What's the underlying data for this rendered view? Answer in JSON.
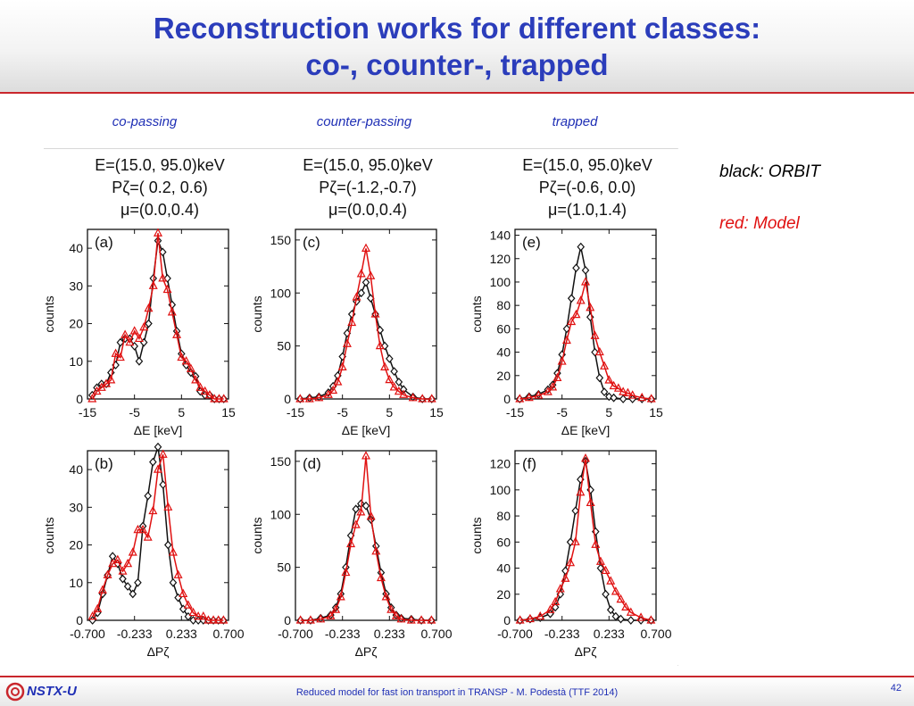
{
  "slide": {
    "title_line1": "Reconstruction works for different classes:",
    "title_line2": "co-, counter-, trapped",
    "columns": [
      "co-passing",
      "counter-passing",
      "trapped"
    ],
    "legend_black": "black: ORBIT",
    "legend_red": "red: Model",
    "footer_text": "Reduced model for fast ion transport in TRANSP - M. Podestà (TTF 2014)",
    "page_number": "42",
    "logo_text": "NSTX-U"
  },
  "colors": {
    "title": "#2b3dbb",
    "accent_red": "#c9262c",
    "orbit": "#111111",
    "model": "#e01010"
  },
  "chart_data": [
    {
      "type": "line",
      "panel": "(a)",
      "ylabel": "counts",
      "xlabel": "ΔE [keV]",
      "header": [
        "E=(15.0, 95.0)keV",
        "Pζ=( 0.2, 0.6)",
        "μ=(0.0,0.4)"
      ],
      "xlim": [
        -15,
        15
      ],
      "ylim": [
        0,
        45
      ],
      "xticks": [
        -15,
        -5,
        5,
        15
      ],
      "xticklabels": [
        "-15",
        "-5",
        "5",
        "15"
      ],
      "yticks": [
        0,
        10,
        20,
        30,
        40
      ],
      "series": [
        {
          "name": "ORBIT",
          "marker": "diamond",
          "x": [
            -14,
            -13,
            -12,
            -11,
            -10,
            -9,
            -8,
            -7,
            -6,
            -5,
            -4,
            -3,
            -2,
            -1,
            0,
            1,
            2,
            3,
            4,
            5,
            6,
            7,
            8,
            9,
            10,
            11,
            12,
            13,
            14
          ],
          "y": [
            1,
            3,
            4,
            4,
            7,
            9,
            15,
            16,
            16,
            14,
            10,
            15,
            20,
            32,
            42,
            39,
            32,
            25,
            18,
            12,
            9,
            7,
            6,
            2,
            1,
            1,
            0,
            0,
            0
          ]
        },
        {
          "name": "Model",
          "marker": "triangle",
          "x": [
            -14,
            -13,
            -12,
            -11,
            -10,
            -9,
            -8,
            -7,
            -6,
            -5,
            -4,
            -3,
            -2,
            -1,
            0,
            1,
            2,
            3,
            4,
            5,
            6,
            7,
            8,
            9,
            10,
            11,
            12,
            13,
            14
          ],
          "y": [
            0,
            2,
            3,
            4,
            5,
            12,
            11,
            17,
            15,
            18,
            16,
            19,
            24,
            30,
            44,
            32,
            29,
            23,
            17,
            11,
            10,
            8,
            5,
            3,
            2,
            1,
            0,
            0,
            0
          ]
        }
      ]
    },
    {
      "type": "line",
      "panel": "(c)",
      "ylabel": "counts",
      "xlabel": "ΔE [keV]",
      "header": [
        "E=(15.0, 95.0)keV",
        "Pζ=(-1.2,-0.7)",
        "μ=(0.0,0.4)"
      ],
      "xlim": [
        -15,
        15
      ],
      "ylim": [
        0,
        160
      ],
      "xticks": [
        -15,
        -5,
        5,
        15
      ],
      "xticklabels": [
        "-15",
        "-5",
        "5",
        "15"
      ],
      "yticks": [
        0,
        50,
        100,
        150
      ],
      "series": [
        {
          "name": "ORBIT",
          "marker": "diamond",
          "x": [
            -14,
            -12,
            -10,
            -8,
            -7,
            -6,
            -5,
            -4,
            -3,
            -2,
            -1,
            0,
            1,
            2,
            3,
            4,
            5,
            6,
            7,
            8,
            10,
            12,
            14
          ],
          "y": [
            0,
            1,
            2,
            6,
            12,
            22,
            40,
            62,
            80,
            92,
            100,
            110,
            95,
            80,
            65,
            50,
            38,
            26,
            16,
            9,
            2,
            0,
            0
          ]
        },
        {
          "name": "Model",
          "marker": "triangle",
          "x": [
            -14,
            -12,
            -10,
            -8,
            -7,
            -6,
            -5,
            -4,
            -3,
            -2,
            -1,
            0,
            1,
            2,
            3,
            4,
            5,
            6,
            7,
            8,
            10,
            12,
            14
          ],
          "y": [
            0,
            0,
            1,
            4,
            8,
            16,
            30,
            52,
            72,
            96,
            118,
            142,
            116,
            80,
            50,
            30,
            18,
            11,
            7,
            4,
            1,
            0,
            0
          ]
        }
      ]
    },
    {
      "type": "line",
      "panel": "(e)",
      "ylabel": "counts",
      "xlabel": "ΔE [keV]",
      "header": [
        "E=(15.0, 95.0)keV",
        "Pζ=(-0.6, 0.0)",
        "μ=(1.0,1.4)"
      ],
      "xlim": [
        -15,
        15
      ],
      "ylim": [
        0,
        145
      ],
      "xticks": [
        -15,
        -5,
        5,
        15
      ],
      "xticklabels": [
        "-15",
        "-5",
        "5",
        "15"
      ],
      "yticks": [
        0,
        20,
        40,
        60,
        80,
        100,
        120,
        140
      ],
      "series": [
        {
          "name": "ORBIT",
          "marker": "diamond",
          "x": [
            -14,
            -12,
            -10,
            -8,
            -7,
            -6,
            -5,
            -4,
            -3,
            -2,
            -1,
            0,
            1,
            2,
            3,
            4,
            5,
            6,
            8,
            10,
            12,
            14
          ],
          "y": [
            0,
            2,
            4,
            8,
            12,
            22,
            38,
            60,
            86,
            112,
            130,
            110,
            70,
            40,
            18,
            6,
            2,
            1,
            0,
            0,
            0,
            0
          ]
        },
        {
          "name": "Model",
          "marker": "triangle",
          "x": [
            -14,
            -12,
            -10,
            -8,
            -7,
            -6,
            -5,
            -4,
            -3,
            -2,
            -1,
            0,
            1,
            2,
            3,
            4,
            5,
            6,
            7,
            8,
            9,
            10,
            12,
            14
          ],
          "y": [
            0,
            1,
            3,
            6,
            10,
            18,
            32,
            50,
            66,
            72,
            84,
            100,
            78,
            54,
            40,
            28,
            16,
            11,
            9,
            6,
            5,
            3,
            1,
            0
          ]
        }
      ]
    },
    {
      "type": "line",
      "panel": "(b)",
      "ylabel": "counts",
      "xlabel": "ΔPζ",
      "xlim": [
        -0.7,
        0.7
      ],
      "ylim": [
        0,
        45
      ],
      "xticks": [
        -0.7,
        -0.233,
        0.233,
        0.7
      ],
      "xticklabels": [
        "-0.700",
        "-0.233",
        "0.233",
        "0.700"
      ],
      "yticks": [
        0,
        10,
        20,
        30,
        40
      ],
      "series": [
        {
          "name": "ORBIT",
          "marker": "diamond",
          "x": [
            -0.65,
            -0.6,
            -0.55,
            -0.5,
            -0.45,
            -0.4,
            -0.35,
            -0.3,
            -0.25,
            -0.2,
            -0.15,
            -0.1,
            -0.05,
            0.0,
            0.05,
            0.1,
            0.15,
            0.2,
            0.25,
            0.3,
            0.35,
            0.4,
            0.45,
            0.5,
            0.55,
            0.6,
            0.65
          ],
          "y": [
            0,
            2,
            7,
            12,
            17,
            15,
            11,
            9,
            7,
            10,
            25,
            33,
            42,
            46,
            36,
            20,
            10,
            6,
            3,
            1,
            0,
            0,
            0,
            0,
            0,
            0,
            0
          ]
        },
        {
          "name": "Model",
          "marker": "triangle",
          "x": [
            -0.65,
            -0.6,
            -0.55,
            -0.5,
            -0.45,
            -0.4,
            -0.35,
            -0.3,
            -0.25,
            -0.2,
            -0.15,
            -0.1,
            -0.05,
            0.0,
            0.05,
            0.1,
            0.15,
            0.2,
            0.25,
            0.3,
            0.35,
            0.4,
            0.45,
            0.5,
            0.55,
            0.6,
            0.65
          ],
          "y": [
            1,
            3,
            8,
            12,
            15,
            16,
            13,
            15,
            18,
            24,
            24,
            22,
            29,
            40,
            44,
            30,
            18,
            12,
            7,
            4,
            2,
            1,
            1,
            0,
            0,
            0,
            0
          ]
        }
      ]
    },
    {
      "type": "line",
      "panel": "(d)",
      "ylabel": "counts",
      "xlabel": "ΔPζ",
      "xlim": [
        -0.7,
        0.7
      ],
      "ylim": [
        0,
        160
      ],
      "xticks": [
        -0.7,
        -0.233,
        0.233,
        0.7
      ],
      "xticklabels": [
        "-0.700",
        "-0.233",
        "0.233",
        "0.700"
      ],
      "yticks": [
        0,
        50,
        100,
        150
      ],
      "series": [
        {
          "name": "ORBIT",
          "marker": "diamond",
          "x": [
            -0.65,
            -0.55,
            -0.45,
            -0.35,
            -0.3,
            -0.25,
            -0.2,
            -0.15,
            -0.1,
            -0.05,
            0.0,
            0.05,
            0.1,
            0.15,
            0.2,
            0.25,
            0.3,
            0.35,
            0.45,
            0.55,
            0.65
          ],
          "y": [
            0,
            0,
            2,
            5,
            12,
            25,
            50,
            80,
            105,
            110,
            108,
            95,
            70,
            45,
            25,
            12,
            5,
            2,
            1,
            0,
            0
          ]
        },
        {
          "name": "Model",
          "marker": "triangle",
          "x": [
            -0.65,
            -0.55,
            -0.45,
            -0.35,
            -0.3,
            -0.25,
            -0.2,
            -0.15,
            -0.1,
            -0.05,
            0.0,
            0.05,
            0.1,
            0.15,
            0.2,
            0.25,
            0.3,
            0.35,
            0.45,
            0.55,
            0.65
          ],
          "y": [
            0,
            0,
            1,
            4,
            10,
            22,
            45,
            72,
            90,
            102,
            155,
            98,
            65,
            40,
            22,
            10,
            4,
            1,
            0,
            0,
            0
          ]
        }
      ]
    },
    {
      "type": "line",
      "panel": "(f)",
      "ylabel": "counts",
      "xlabel": "ΔPζ",
      "xlim": [
        -0.7,
        0.7
      ],
      "ylim": [
        0,
        130
      ],
      "xticks": [
        -0.7,
        -0.233,
        0.233,
        0.7
      ],
      "xticklabels": [
        "-0.700",
        "-0.233",
        "0.233",
        "0.700"
      ],
      "yticks": [
        0,
        20,
        40,
        60,
        80,
        100,
        120
      ],
      "series": [
        {
          "name": "ORBIT",
          "marker": "diamond",
          "x": [
            -0.65,
            -0.55,
            -0.45,
            -0.35,
            -0.3,
            -0.25,
            -0.2,
            -0.15,
            -0.1,
            -0.05,
            0.0,
            0.05,
            0.1,
            0.15,
            0.2,
            0.25,
            0.3,
            0.35,
            0.45,
            0.55,
            0.65
          ],
          "y": [
            0,
            1,
            2,
            5,
            10,
            20,
            38,
            60,
            84,
            108,
            122,
            100,
            68,
            40,
            20,
            8,
            3,
            1,
            0,
            0,
            0
          ]
        },
        {
          "name": "Model",
          "marker": "triangle",
          "x": [
            -0.65,
            -0.55,
            -0.45,
            -0.35,
            -0.3,
            -0.25,
            -0.2,
            -0.15,
            -0.1,
            -0.05,
            0.0,
            0.05,
            0.1,
            0.15,
            0.2,
            0.25,
            0.3,
            0.35,
            0.4,
            0.45,
            0.55,
            0.65
          ],
          "y": [
            0,
            1,
            3,
            8,
            14,
            24,
            32,
            44,
            60,
            98,
            124,
            90,
            58,
            45,
            38,
            30,
            22,
            16,
            10,
            6,
            2,
            0
          ]
        }
      ]
    }
  ]
}
